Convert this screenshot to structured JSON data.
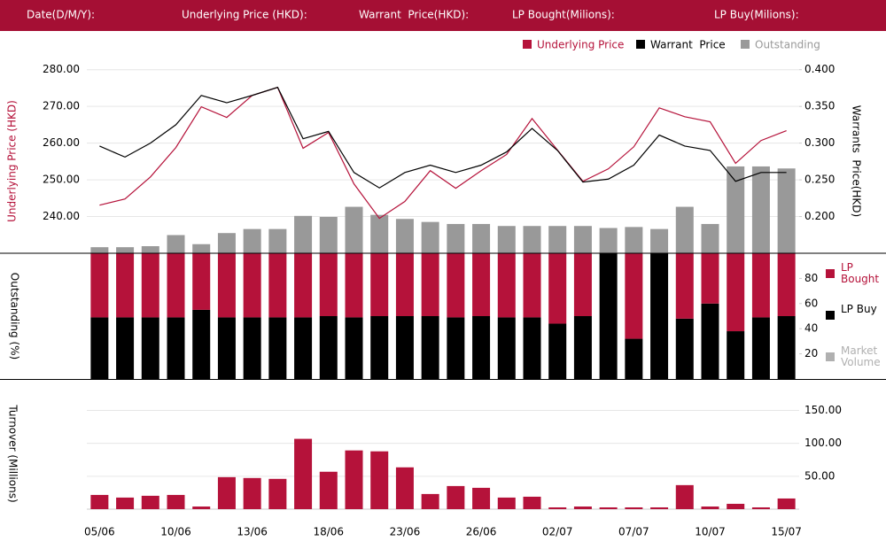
{
  "header": {
    "fields": [
      "Date(D/M/Y):",
      "Underlying Price (HKD):",
      "Warrant  Price(HKD):",
      "LP Bought(Milions):",
      "LP Buy(Milions):"
    ]
  },
  "chart_data": [
    {
      "type": "combo",
      "ylabel": "Underlying Price (HKD)",
      "y2label": "Warrants  Price(HKD)",
      "ylim": [
        230,
        285
      ],
      "yticks": [
        {
          "value": 240,
          "label": "240.00"
        },
        {
          "value": 250,
          "label": "250.00"
        },
        {
          "value": 260,
          "label": "260.00"
        },
        {
          "value": 270,
          "label": "270.00"
        },
        {
          "value": 280,
          "label": "280.00"
        }
      ],
      "y2lim": [
        0.15,
        0.425
      ],
      "y2ticks": [
        {
          "value": 0.2,
          "label": "0.200"
        },
        {
          "value": 0.25,
          "label": "0.250"
        },
        {
          "value": 0.3,
          "label": "0.300"
        },
        {
          "value": 0.35,
          "label": "0.350"
        },
        {
          "value": 0.4,
          "label": "0.400"
        }
      ],
      "y3lim": [
        0,
        100
      ],
      "grid": true,
      "series": [
        {
          "name": "Underlying Price",
          "color": "#b5123a",
          "kind": "line",
          "axis": "y",
          "values": [
            243.1,
            244.8,
            250.8,
            258.8,
            269.9,
            267.0,
            273.0,
            275.2,
            258.6,
            262.9,
            248.9,
            239.5,
            244.1,
            252.5,
            247.7,
            252.5,
            256.9,
            266.7,
            258.1,
            249.6,
            253.0,
            259.0,
            269.6,
            267.2,
            265.8,
            254.5,
            260.7,
            263.4
          ]
        },
        {
          "name": "Warrant  Price",
          "color": "#000000",
          "kind": "line",
          "axis": "y2",
          "values": [
            0.296,
            0.281,
            0.3,
            0.325,
            0.365,
            0.355,
            0.365,
            0.376,
            0.306,
            0.316,
            0.26,
            0.239,
            0.26,
            0.27,
            0.26,
            0.27,
            0.288,
            0.32,
            0.29,
            0.247,
            0.251,
            0.27,
            0.311,
            0.296,
            0.29,
            0.248,
            0.26,
            0.26
          ]
        },
        {
          "name": "Outstanding",
          "color": "#999999",
          "kind": "bar",
          "axis": "y3",
          "values": [
            3,
            3,
            3.5,
            9,
            4.5,
            10,
            12,
            12,
            18.5,
            18,
            23,
            19,
            17,
            15.5,
            14.5,
            14.5,
            13.5,
            13.5,
            13.5,
            13.5,
            12.5,
            13,
            12,
            23,
            14.5,
            43,
            43,
            42
          ]
        }
      ]
    },
    {
      "type": "stacked_bar",
      "ylabel": "Outstanding (%)",
      "ylim": [
        0,
        100
      ],
      "yticks": [
        20,
        40,
        60,
        80
      ],
      "grid": false,
      "series": [
        {
          "name": "LP Bought",
          "color": "#b5123a",
          "values": [
            51,
            51,
            51,
            51,
            45,
            51,
            51,
            51,
            51,
            50,
            51,
            50,
            50,
            50,
            51,
            50,
            51,
            51,
            56,
            50,
            0,
            68,
            0,
            52,
            40,
            62,
            51,
            50
          ]
        },
        {
          "name": "LP Buy",
          "color": "#000000",
          "values": [
            49,
            49,
            49,
            49,
            55,
            49,
            49,
            49,
            49,
            50,
            49,
            50,
            50,
            50,
            49,
            50,
            49,
            49,
            44,
            50,
            100,
            32,
            100,
            48,
            60,
            38,
            49,
            50
          ]
        }
      ],
      "extra_legend": {
        "name": "Market Volume",
        "color": "#b0b0b0"
      }
    },
    {
      "type": "bar",
      "ylabel": "Turnover (Millions)",
      "ylim": [
        0,
        195
      ],
      "yticks": [
        {
          "value": 50,
          "label": "50.00"
        },
        {
          "value": 100,
          "label": "100.00"
        },
        {
          "value": 150,
          "label": "150.00"
        }
      ],
      "grid": true,
      "color": "#b5123a",
      "categories": [
        "05/06",
        null,
        null,
        "10/06",
        null,
        null,
        "13/06",
        null,
        null,
        "18/06",
        null,
        null,
        "23/06",
        null,
        null,
        "26/06",
        null,
        null,
        "02/07",
        null,
        null,
        "07/07",
        null,
        null,
        "10/07",
        null,
        null,
        "15/07"
      ],
      "values": [
        21.6,
        17.6,
        20.3,
        21.6,
        4,
        48.6,
        47.3,
        46,
        106.8,
        56.8,
        89.2,
        87.8,
        63.5,
        23,
        35.1,
        32.4,
        17.6,
        18.9,
        2.7,
        4,
        2.7,
        2.7,
        2.7,
        36.5,
        4,
        8.1,
        2.7,
        16.2
      ]
    }
  ]
}
